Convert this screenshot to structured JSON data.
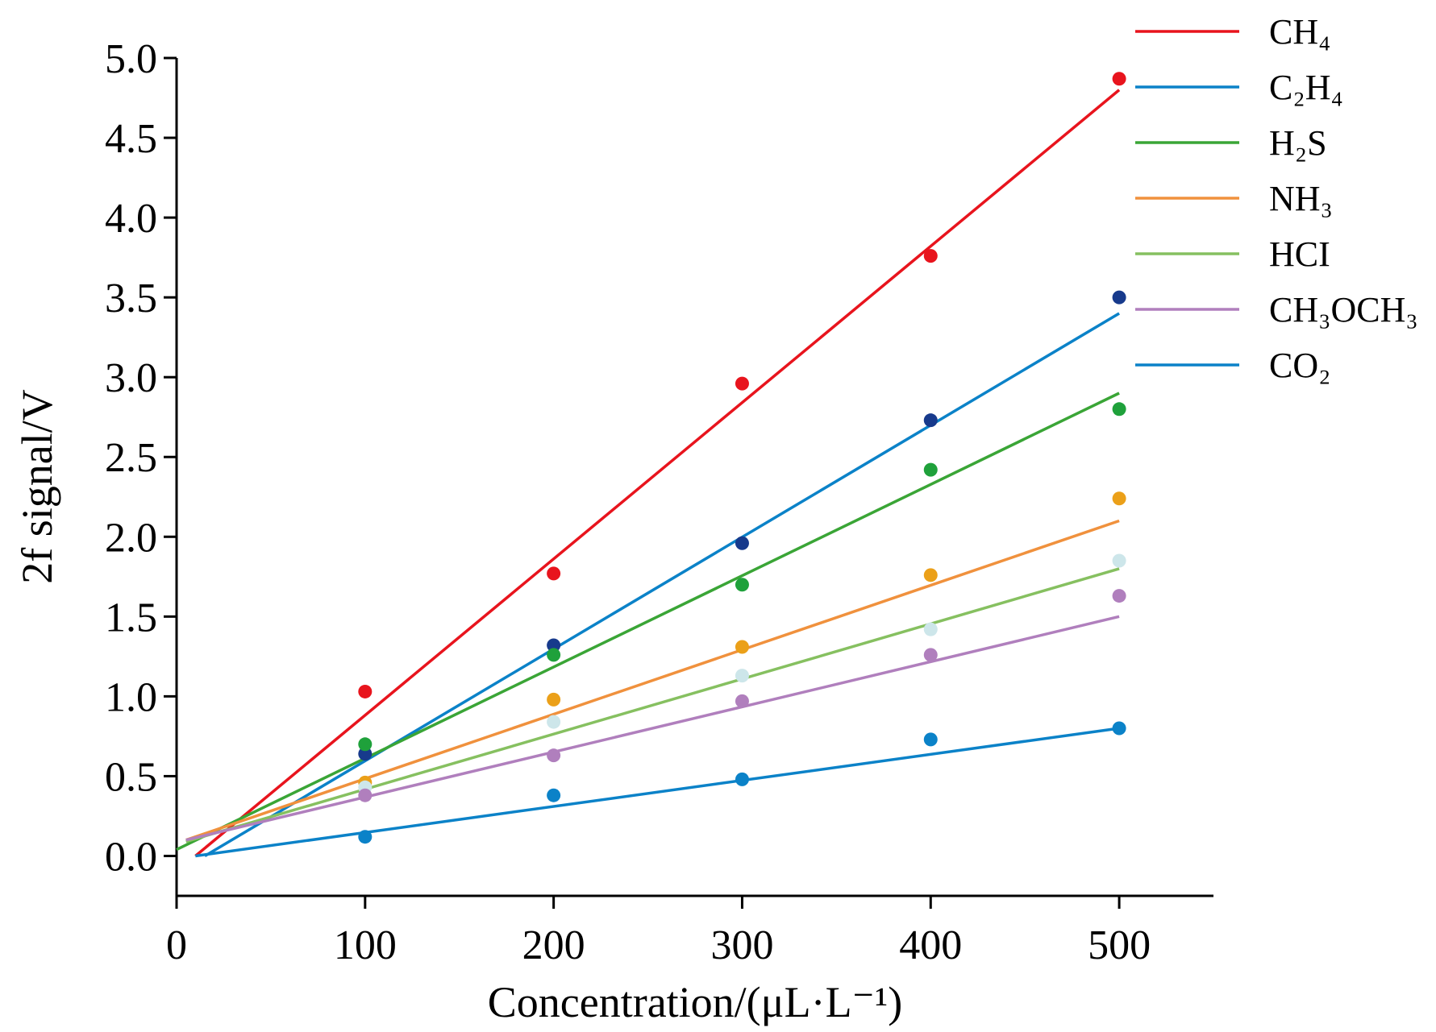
{
  "chart_data": {
    "type": "scatter",
    "xlabel": "Concentration/(μL·L⁻¹)",
    "ylabel": "2f signal/V",
    "xlim": [
      0,
      550
    ],
    "ylim": [
      -0.25,
      5.0
    ],
    "x_ticks": [
      0,
      100,
      200,
      300,
      400,
      500
    ],
    "y_ticks": [
      0.0,
      0.5,
      1.0,
      1.5,
      2.0,
      2.5,
      3.0,
      3.5,
      4.0,
      4.5,
      5.0
    ],
    "x_tick_labels": [
      "0",
      "100",
      "200",
      "300",
      "400",
      "500"
    ],
    "y_tick_labels": [
      "0.0",
      "0.5",
      "1.0",
      "1.5",
      "2.0",
      "2.5",
      "3.0",
      "3.5",
      "4.0",
      "4.5",
      "5.0"
    ],
    "grid": false,
    "legend_position": "top-right",
    "x": [
      100,
      200,
      300,
      400,
      500
    ],
    "series": [
      {
        "name": "CH₄",
        "line_color": "#e8141d",
        "marker_color": "#e8141d",
        "points": [
          1.03,
          1.77,
          2.96,
          3.76,
          4.87
        ],
        "fit": [
          [
            10,
            0.0
          ],
          [
            500,
            4.8
          ]
        ]
      },
      {
        "name": "C₂H₄",
        "line_color": "#0b82c8",
        "marker_color": "#173a8c",
        "points": [
          0.64,
          1.32,
          1.96,
          2.73,
          3.5
        ],
        "fit": [
          [
            15,
            0.0
          ],
          [
            500,
            3.4
          ]
        ]
      },
      {
        "name": "H₂S",
        "line_color": "#3aa536",
        "marker_color": "#1fa13b",
        "points": [
          0.7,
          1.26,
          1.7,
          2.42,
          2.8
        ],
        "fit": [
          [
            0,
            0.04
          ],
          [
            500,
            2.9
          ]
        ]
      },
      {
        "name": "NH₃",
        "line_color": "#f0913d",
        "marker_color": "#eba019",
        "points": [
          0.46,
          0.98,
          1.31,
          1.76,
          2.24
        ],
        "fit": [
          [
            5,
            0.1
          ],
          [
            500,
            2.1
          ]
        ]
      },
      {
        "name": "HCI",
        "line_color": "#86c060",
        "marker_color": "#cde6ea",
        "points": [
          0.43,
          0.84,
          1.13,
          1.42,
          1.85
        ],
        "fit": [
          [
            5,
            0.09
          ],
          [
            500,
            1.8
          ]
        ]
      },
      {
        "name": "CH₃OCH₃",
        "line_color": "#b07fbd",
        "marker_color": "#b07fbd",
        "points": [
          0.38,
          0.63,
          0.97,
          1.26,
          1.63
        ],
        "fit": [
          [
            5,
            0.1
          ],
          [
            500,
            1.5
          ]
        ]
      },
      {
        "name": "CO₂",
        "line_color": "#0b82c8",
        "marker_color": "#0b82c8",
        "points": [
          0.12,
          0.38,
          0.48,
          0.73,
          0.8
        ],
        "fit": [
          [
            10,
            0.0
          ],
          [
            500,
            0.8
          ]
        ]
      }
    ]
  }
}
